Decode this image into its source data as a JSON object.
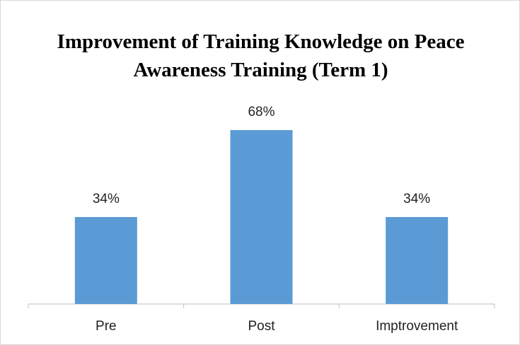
{
  "chart_data": {
    "type": "bar",
    "title": "Improvement of Training Knowledge on Peace Awareness Training (Term 1)",
    "categories": [
      "Pre",
      "Post",
      "Imptrovement"
    ],
    "values": [
      34,
      68,
      34
    ],
    "value_labels": [
      "34%",
      "68%",
      "34%"
    ],
    "color": "#5b9bd5"
  }
}
